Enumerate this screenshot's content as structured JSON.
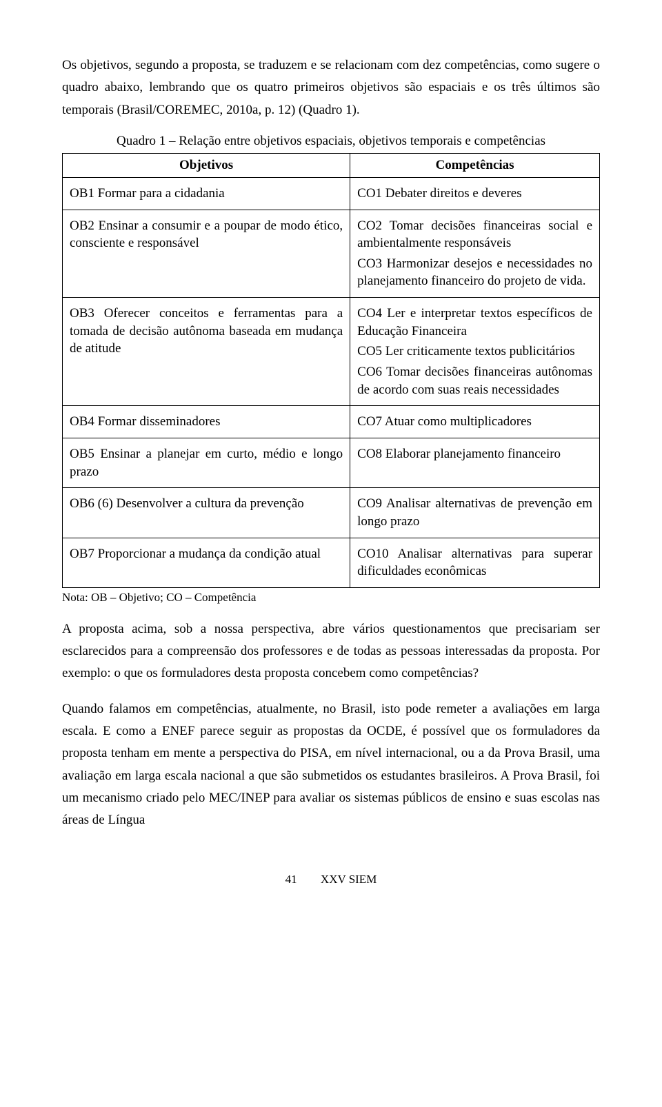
{
  "intro": "Os objetivos, segundo a proposta, se traduzem e se relacionam com dez competências, como sugere o quadro abaixo, lembrando que os quatro primeiros objetivos são espaciais e os três últimos são temporais (Brasil/COREMEC, 2010a, p. 12) (Quadro 1).",
  "table": {
    "caption": "Quadro 1 – Relação entre objetivos espaciais, objetivos temporais e competências",
    "header": {
      "left": "Objetivos",
      "right": "Competências"
    },
    "rows": [
      {
        "left": [
          "OB1 Formar para a cidadania"
        ],
        "right": [
          "CO1 Debater direitos e deveres"
        ]
      },
      {
        "left": [
          "OB2 Ensinar a consumir e a poupar de modo ético, consciente e responsável"
        ],
        "right": [
          "CO2 Tomar decisões financeiras social e ambientalmente responsáveis",
          "CO3 Harmonizar desejos e necessidades no planejamento financeiro do projeto de vida."
        ]
      },
      {
        "left": [
          "OB3 Oferecer conceitos e ferramentas para a tomada de decisão autônoma baseada em mudança de atitude"
        ],
        "right": [
          "CO4 Ler e interpretar textos específicos de Educação Financeira",
          "CO5 Ler criticamente textos publicitários",
          "CO6 Tomar decisões financeiras autônomas de acordo com suas reais necessidades"
        ]
      },
      {
        "left": [
          "OB4 Formar disseminadores"
        ],
        "right": [
          "CO7 Atuar como multiplicadores"
        ]
      },
      {
        "left": [
          "OB5 Ensinar a planejar em curto, médio e longo prazo"
        ],
        "right": [
          "CO8 Elaborar planejamento financeiro"
        ]
      },
      {
        "left": [
          "OB6 (6) Desenvolver a cultura da prevenção"
        ],
        "right": [
          "CO9 Analisar alternativas de prevenção em longo prazo"
        ]
      },
      {
        "left": [
          "OB7 Proporcionar a mudança da condição atual"
        ],
        "right": [
          "CO10 Analisar alternativas para superar dificuldades econômicas"
        ]
      }
    ],
    "note": "Nota: OB – Objetivo; CO – Competência"
  },
  "para1": "A proposta acima, sob a nossa perspectiva, abre vários questionamentos que precisariam ser esclarecidos para a compreensão dos professores e de todas as pessoas interessadas da proposta. Por exemplo: o que os formuladores desta proposta concebem como competências?",
  "para2": "Quando falamos em competências, atualmente, no Brasil, isto pode remeter a avaliações em larga escala. E como a ENEF parece seguir as propostas da OCDE, é possível que os formuladores da proposta tenham em mente a perspectiva do PISA, em nível internacional, ou a da Prova Brasil, uma avaliação em larga escala nacional a que são submetidos os estudantes brasileiros. A Prova Brasil, foi um mecanismo criado pelo MEC/INEP para avaliar os sistemas públicos de ensino e suas escolas nas áreas de Língua",
  "footer": {
    "page": "41",
    "label": "XXV SIEM"
  }
}
